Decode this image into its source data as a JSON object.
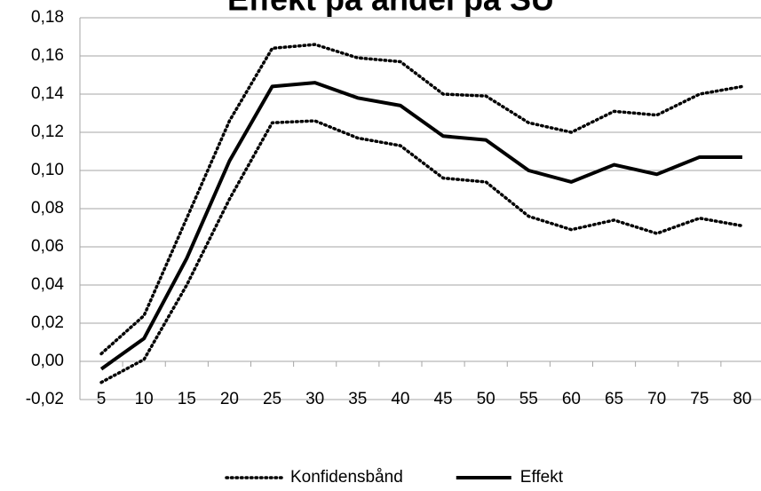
{
  "chart_data": {
    "type": "line",
    "title": "Effekt på andel på SU",
    "categories": [
      5,
      10,
      15,
      20,
      25,
      30,
      35,
      40,
      45,
      50,
      55,
      60,
      65,
      70,
      75,
      80
    ],
    "series": [
      {
        "name": "Konfidensbånd",
        "color": "#000000",
        "style": "dotted",
        "values": [
          0.004,
          0.024,
          0.075,
          0.126,
          0.164,
          0.166,
          0.159,
          0.157,
          0.14,
          0.139,
          0.125,
          0.12,
          0.131,
          0.129,
          0.14,
          0.144
        ]
      },
      {
        "name": "Konfidensbånd",
        "color": "#000000",
        "style": "dotted",
        "values": [
          -0.011,
          0.001,
          0.04,
          0.085,
          0.125,
          0.126,
          0.117,
          0.113,
          0.096,
          0.094,
          0.076,
          0.069,
          0.074,
          0.067,
          0.075,
          0.071
        ]
      },
      {
        "name": "Effekt",
        "color": "#000000",
        "style": "solid",
        "values": [
          -0.004,
          0.012,
          0.054,
          0.105,
          0.144,
          0.146,
          0.138,
          0.134,
          0.118,
          0.116,
          0.1,
          0.094,
          0.103,
          0.098,
          0.107,
          0.107
        ]
      }
    ],
    "ylim": [
      -0.02,
      0.18
    ],
    "yticks": [
      {
        "value": -0.02,
        "label": "-0,02"
      },
      {
        "value": 0,
        "label": "0,00"
      },
      {
        "value": 0.02,
        "label": "0,02"
      },
      {
        "value": 0.04,
        "label": "0,04"
      },
      {
        "value": 0.06,
        "label": "0,06"
      },
      {
        "value": 0.08,
        "label": "0,08"
      },
      {
        "value": 0.1,
        "label": "0,10"
      },
      {
        "value": 0.12,
        "label": "0,12"
      },
      {
        "value": 0.14,
        "label": "0,14"
      },
      {
        "value": 0.16,
        "label": "0,16"
      },
      {
        "value": 0.18,
        "label": "0,18"
      }
    ],
    "grid": true,
    "legend": "bottom"
  }
}
